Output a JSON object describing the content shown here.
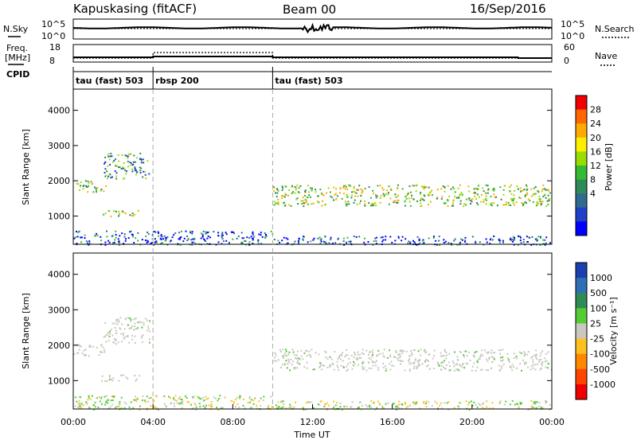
{
  "header": {
    "title": "Kapuskasing (fitACF)",
    "beam": "Beam 00",
    "date": "16/Sep/2016"
  },
  "top_panel": {
    "left_label": "N.Sky",
    "right_label": "N.Search",
    "yticks": [
      "10^5",
      "10^0"
    ]
  },
  "freq_panel": {
    "left_label_1": "Freq.",
    "left_label_2": "[MHz]",
    "left_ticks": [
      "18",
      "8"
    ],
    "right_label": "Nave",
    "right_ticks": [
      "60",
      "0"
    ]
  },
  "cpid": {
    "label": "CPID",
    "segments": [
      {
        "label": "tau (fast) 503",
        "start": 0,
        "end": 4
      },
      {
        "label": "rbsp 200",
        "start": 4,
        "end": 10
      },
      {
        "label": "tau (fast) 503",
        "start": 10,
        "end": 24
      }
    ]
  },
  "chart_data": [
    {
      "type": "heatmap",
      "name": "power",
      "ylabel": "Slant Range [km]",
      "ylim": [
        200,
        4600
      ],
      "yticks": [
        1000,
        2000,
        3000,
        4000
      ],
      "xlim": [
        0,
        24
      ],
      "colorbar": {
        "label": "Power [dB]",
        "ticks": [
          "28",
          "24",
          "20",
          "16",
          "12",
          "8",
          "4"
        ],
        "colors": [
          "#ee0000",
          "#ff6600",
          "#ffaa00",
          "#ffee00",
          "#99dd00",
          "#33bb33",
          "#2e8b57",
          "#2f6b8f",
          "#2040c8",
          "#0000ff"
        ]
      },
      "echo_bands": [
        {
          "t0": 0.0,
          "t1": 1.6,
          "r0": 1700,
          "r1": 2050,
          "level": "strong"
        },
        {
          "t0": 1.5,
          "t1": 3.8,
          "r0": 2050,
          "r1": 2800,
          "level": "medium"
        },
        {
          "t0": 1.3,
          "t1": 3.3,
          "r0": 1000,
          "r1": 1180,
          "level": "strong"
        },
        {
          "t0": 0.0,
          "t1": 10.0,
          "r0": 200,
          "r1": 600,
          "level": "weak"
        },
        {
          "t0": 10.0,
          "t1": 24.0,
          "r0": 1300,
          "r1": 1900,
          "level": "strong"
        },
        {
          "t0": 10.0,
          "t1": 24.0,
          "r0": 200,
          "r1": 450,
          "level": "weak"
        }
      ]
    },
    {
      "type": "heatmap",
      "name": "velocity",
      "ylabel": "Slant Range [km]",
      "xlabel": "Time UT",
      "ylim": [
        200,
        4600
      ],
      "yticks": [
        1000,
        2000,
        3000,
        4000
      ],
      "xlim": [
        0,
        24
      ],
      "xticks": [
        "00:00",
        "04:00",
        "08:00",
        "12:00",
        "16:00",
        "20:00",
        "00:00"
      ],
      "colorbar": {
        "label": "Velocity [m s⁻¹]",
        "ticks": [
          "1000",
          "500",
          "100",
          "25",
          "-25",
          "-100",
          "-500",
          "-1000"
        ],
        "colors": [
          "#1a3fb0",
          "#2f6fb5",
          "#2e8b57",
          "#55cc33",
          "#c8c8c0",
          "#ffc020",
          "#ff8800",
          "#ff4400",
          "#ee0000"
        ]
      }
    }
  ]
}
